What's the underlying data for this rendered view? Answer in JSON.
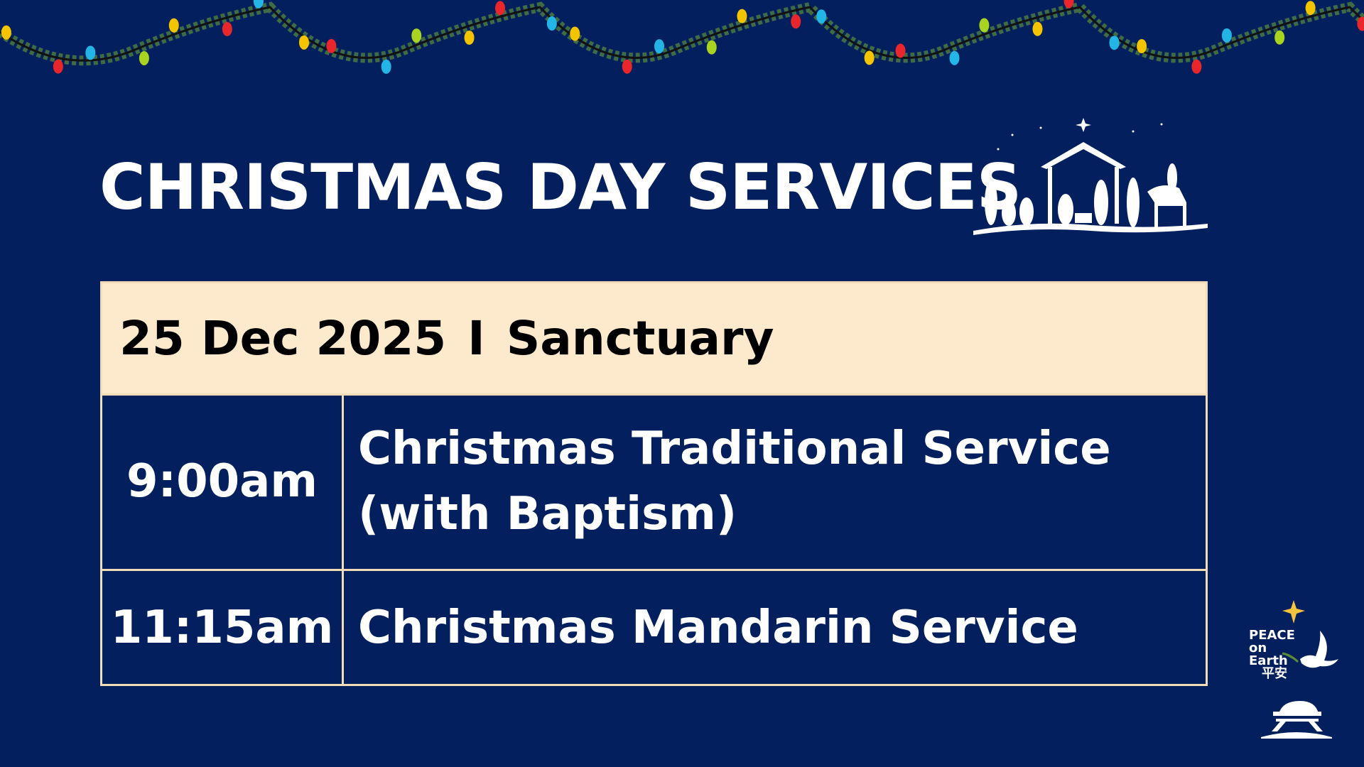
{
  "title": "CHRISTMAS DAY SERVICES",
  "header": {
    "date": "25 Dec 2025",
    "separator": "I",
    "venue": "Sanctuary"
  },
  "services": [
    {
      "time": "9:00am",
      "name_line1": "Christmas Traditional Service",
      "name_line2": "(with Baptism)"
    },
    {
      "time": "11:15am",
      "name_line1": "Christmas Mandarin Service"
    }
  ],
  "logo": {
    "line1": "PEACE",
    "line2": "on",
    "line3": "Earth",
    "line4": "平安"
  },
  "colors": {
    "background": "#031f5d",
    "header_band": "#fde9cc",
    "border": "#f2dcb8",
    "text": "#ffffff"
  },
  "icons": [
    "christmas-lights-garland-icon",
    "nativity-scene-icon",
    "star-icon",
    "dove-icon",
    "manger-icon"
  ]
}
